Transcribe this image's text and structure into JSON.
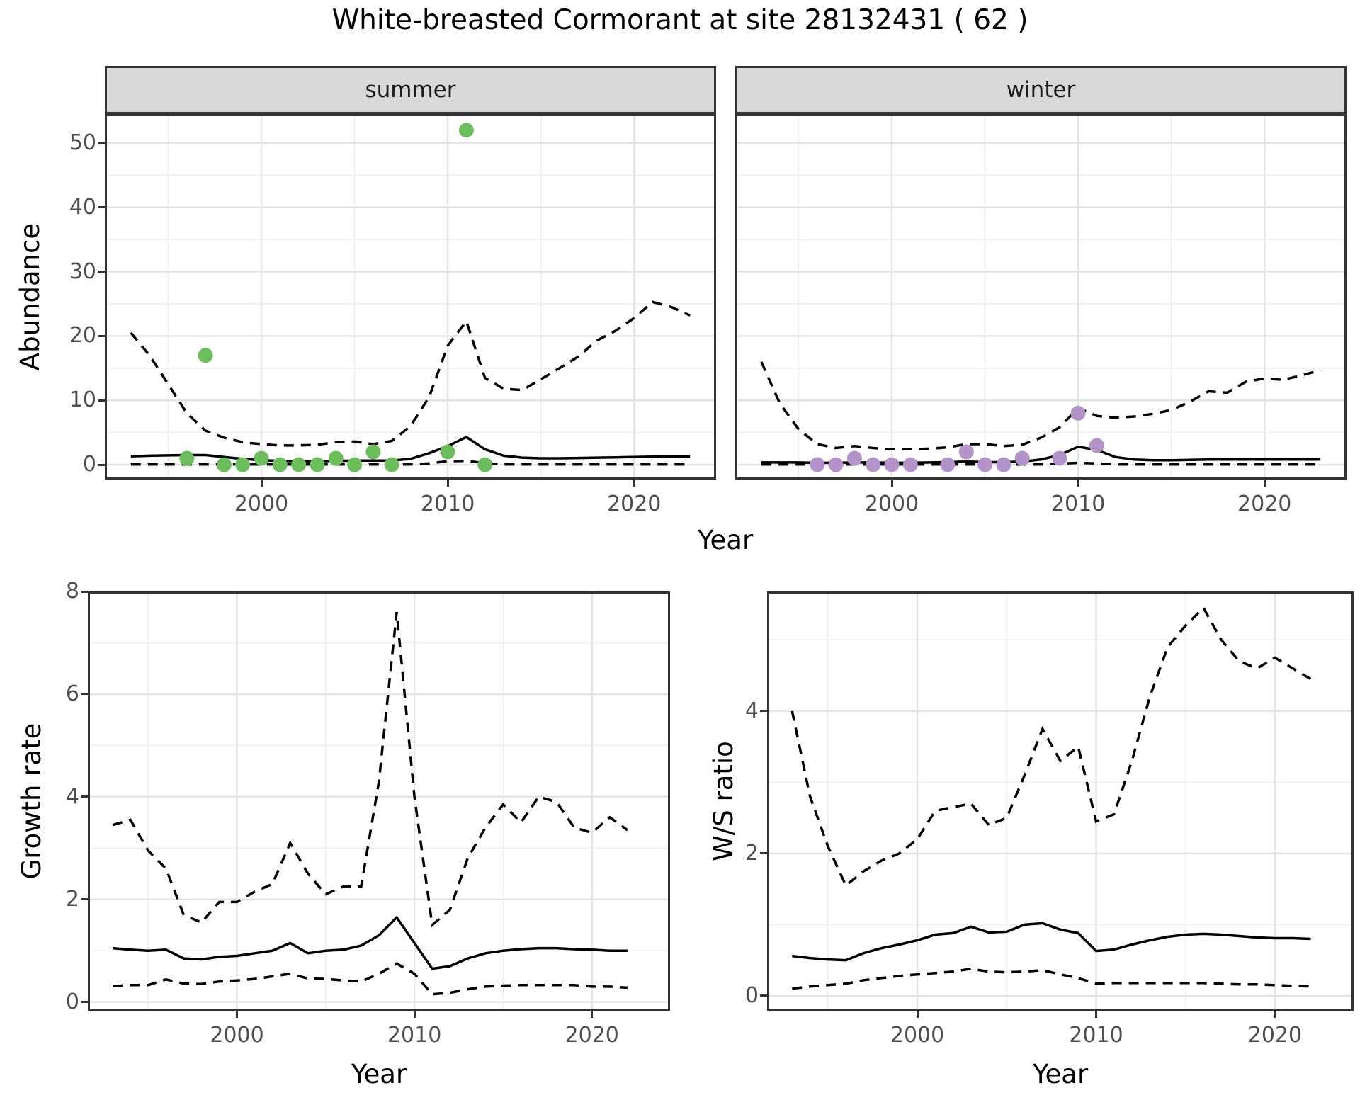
{
  "title": "White-breasted Cormorant at site 28132431 ( 62 )",
  "facets": {
    "summer": "summer",
    "winter": "winter"
  },
  "axis_titles": {
    "y_top": "Abundance",
    "x_top": "Year",
    "y_growth": "Growth rate",
    "x_growth": "Year",
    "y_ws": "W/S ratio",
    "x_ws": "Year"
  },
  "colors": {
    "summer_point": "#6CBE5C",
    "winter_point": "#B493CB",
    "line": "#000000",
    "grid_major": "#E3E3E3",
    "grid_minor": "#F0F0F0",
    "strip_fill": "#D9D9D9",
    "border": "#333333",
    "axis_text": "#4D4D4D"
  },
  "chart_data": [
    {
      "id": "abundance_summer",
      "type": "line+scatter",
      "facet": "summer",
      "xlabel": "Year",
      "ylabel": "Abundance",
      "xlim": [
        1991.6,
        2024.4
      ],
      "ylim": [
        -2.3,
        54.5
      ],
      "x_major_ticks": [
        2000,
        2010,
        2020
      ],
      "x_minor_ticks": [
        1995,
        2005,
        2015
      ],
      "y_major_ticks": [
        0,
        10,
        20,
        30,
        40,
        50
      ],
      "y_minor_ticks": [
        5,
        15,
        25,
        35,
        45
      ],
      "show_y_tick_labels": true,
      "points": {
        "name": "observed-count",
        "color": "summer_point",
        "years": [
          1996,
          1997,
          1998,
          1999,
          2000,
          2001,
          2002,
          2003,
          2004,
          2005,
          2006,
          2007,
          2010,
          2011,
          2012
        ],
        "values": [
          1,
          17,
          0,
          0,
          1,
          0,
          0,
          0,
          1,
          0,
          2,
          0,
          2,
          52,
          0
        ]
      },
      "series": [
        {
          "name": "model-fit",
          "style": "solid",
          "years": [
            1993,
            1994,
            1995,
            1996,
            1997,
            1998,
            1999,
            2000,
            2001,
            2002,
            2003,
            2004,
            2005,
            2006,
            2007,
            2008,
            2009,
            2010,
            2011,
            2012,
            2013,
            2014,
            2015,
            2016,
            2017,
            2018,
            2019,
            2020,
            2021,
            2022,
            2023
          ],
          "values": [
            1.3,
            1.4,
            1.45,
            1.5,
            1.5,
            1.2,
            0.9,
            0.7,
            0.6,
            0.55,
            0.55,
            0.6,
            0.65,
            0.65,
            0.65,
            0.9,
            1.8,
            2.9,
            4.3,
            2.4,
            1.4,
            1.1,
            1.0,
            1.0,
            1.05,
            1.1,
            1.15,
            1.2,
            1.25,
            1.3,
            1.3
          ]
        },
        {
          "name": "ci-upper",
          "style": "dashed",
          "years": [
            1993,
            1994,
            1995,
            1996,
            1997,
            1998,
            1999,
            2000,
            2001,
            2002,
            2003,
            2004,
            2005,
            2006,
            2007,
            2008,
            2009,
            2010,
            2011,
            2012,
            2013,
            2014,
            2015,
            2016,
            2017,
            2018,
            2019,
            2020,
            2021,
            2022,
            2023
          ],
          "values": [
            20.5,
            17,
            12.5,
            8,
            5.3,
            4.2,
            3.5,
            3.2,
            3.0,
            3.0,
            3.1,
            3.5,
            3.6,
            3.2,
            3.7,
            6,
            10.5,
            18.5,
            22.3,
            13.5,
            11.8,
            11.6,
            13.3,
            15,
            16.8,
            19.3,
            20.8,
            22.8,
            25.3,
            24.5,
            23.2
          ]
        },
        {
          "name": "ci-lower",
          "style": "dashed",
          "years": [
            1993,
            1994,
            1995,
            1996,
            1997,
            1998,
            1999,
            2000,
            2001,
            2002,
            2003,
            2004,
            2005,
            2006,
            2007,
            2008,
            2009,
            2010,
            2011,
            2012,
            2013,
            2014,
            2015,
            2016,
            2017,
            2018,
            2019,
            2020,
            2021,
            2022,
            2023
          ],
          "values": [
            0.05,
            0.05,
            0.05,
            0.05,
            0.05,
            0.05,
            0.05,
            0.05,
            0.05,
            0.05,
            0.05,
            0.05,
            0.05,
            0.05,
            0.05,
            0.05,
            0.2,
            0.55,
            0.6,
            0.25,
            0.05,
            0.05,
            0.05,
            0.05,
            0.05,
            0.05,
            0.05,
            0.05,
            0.05,
            0.05,
            0.05
          ]
        }
      ]
    },
    {
      "id": "abundance_winter",
      "type": "line+scatter",
      "facet": "winter",
      "xlabel": "Year",
      "ylabel": "Abundance",
      "xlim": [
        1991.6,
        2024.4
      ],
      "ylim": [
        -2.3,
        54.5
      ],
      "x_major_ticks": [
        2000,
        2010,
        2020
      ],
      "x_minor_ticks": [
        1995,
        2005,
        2015
      ],
      "y_major_ticks": [
        0,
        10,
        20,
        30,
        40,
        50
      ],
      "y_minor_ticks": [
        5,
        15,
        25,
        35,
        45
      ],
      "show_y_tick_labels": false,
      "points": {
        "name": "observed-count",
        "color": "winter_point",
        "years": [
          1996,
          1997,
          1998,
          1999,
          2000,
          2001,
          2003,
          2004,
          2005,
          2006,
          2007,
          2009,
          2010,
          2011
        ],
        "values": [
          0,
          0,
          1,
          0,
          0,
          0,
          0,
          2,
          0,
          0,
          1,
          1,
          8,
          3
        ]
      },
      "series": [
        {
          "name": "model-fit",
          "style": "solid",
          "years": [
            1993,
            1994,
            1995,
            1996,
            1997,
            1998,
            1999,
            2000,
            2001,
            2002,
            2003,
            2004,
            2005,
            2006,
            2007,
            2008,
            2009,
            2010,
            2011,
            2012,
            2013,
            2014,
            2015,
            2016,
            2017,
            2018,
            2019,
            2020,
            2021,
            2022,
            2023
          ],
          "values": [
            0.35,
            0.35,
            0.35,
            0.3,
            0.3,
            0.35,
            0.35,
            0.3,
            0.3,
            0.35,
            0.4,
            0.5,
            0.4,
            0.4,
            0.5,
            0.8,
            1.5,
            2.8,
            2.3,
            1.2,
            0.8,
            0.7,
            0.7,
            0.75,
            0.8,
            0.8,
            0.8,
            0.8,
            0.8,
            0.8,
            0.8
          ]
        },
        {
          "name": "ci-upper",
          "style": "dashed",
          "years": [
            1993,
            1994,
            1995,
            1996,
            1997,
            1998,
            1999,
            2000,
            2001,
            2002,
            2003,
            2004,
            2005,
            2006,
            2007,
            2008,
            2009,
            2010,
            2011,
            2012,
            2013,
            2014,
            2015,
            2016,
            2017,
            2018,
            2019,
            2020,
            2021,
            2022,
            2023
          ],
          "values": [
            16,
            9.5,
            5.5,
            3.2,
            2.6,
            2.9,
            2.6,
            2.4,
            2.4,
            2.5,
            2.7,
            3.2,
            3.2,
            2.9,
            3.1,
            4.2,
            5.8,
            8.8,
            7.6,
            7.3,
            7.5,
            7.9,
            8.5,
            9.8,
            11.4,
            11.2,
            12.9,
            13.4,
            13.2,
            13.9,
            14.7
          ]
        },
        {
          "name": "ci-lower",
          "style": "dashed",
          "years": [
            1993,
            1994,
            1995,
            1996,
            1997,
            1998,
            1999,
            2000,
            2001,
            2002,
            2003,
            2004,
            2005,
            2006,
            2007,
            2008,
            2009,
            2010,
            2011,
            2012,
            2013,
            2014,
            2015,
            2016,
            2017,
            2018,
            2019,
            2020,
            2021,
            2022,
            2023
          ],
          "values": [
            0.05,
            0.05,
            0.05,
            0.05,
            0.05,
            0.05,
            0.05,
            0.05,
            0.05,
            0.05,
            0.05,
            0.05,
            0.05,
            0.05,
            0.05,
            0.05,
            0.15,
            0.3,
            0.2,
            0.05,
            0.05,
            0.05,
            0.05,
            0.05,
            0.05,
            0.05,
            0.05,
            0.05,
            0.05,
            0.05,
            0.05
          ]
        }
      ]
    },
    {
      "id": "growth",
      "type": "line",
      "facet": "",
      "xlabel": "Year",
      "ylabel": "Growth rate",
      "xlim": [
        1991.6,
        2024.4
      ],
      "ylim": [
        -0.17,
        8.0
      ],
      "x_major_ticks": [
        2000,
        2010,
        2020
      ],
      "x_minor_ticks": [
        1995,
        2005,
        2015
      ],
      "y_major_ticks": [
        0,
        2,
        4,
        6,
        8
      ],
      "y_minor_ticks": [
        1,
        3,
        5,
        7
      ],
      "show_y_tick_labels": true,
      "points": null,
      "series": [
        {
          "name": "model-fit",
          "style": "solid",
          "years": [
            1993,
            1994,
            1995,
            1996,
            1997,
            1998,
            1999,
            2000,
            2001,
            2002,
            2003,
            2004,
            2005,
            2006,
            2007,
            2008,
            2009,
            2010,
            2011,
            2012,
            2013,
            2014,
            2015,
            2016,
            2017,
            2018,
            2019,
            2020,
            2021,
            2022
          ],
          "values": [
            1.05,
            1.02,
            1.0,
            1.02,
            0.85,
            0.83,
            0.88,
            0.9,
            0.95,
            1.0,
            1.15,
            0.95,
            1.0,
            1.02,
            1.1,
            1.3,
            1.65,
            1.15,
            0.65,
            0.7,
            0.85,
            0.95,
            1.0,
            1.03,
            1.05,
            1.05,
            1.03,
            1.02,
            1.0,
            1.0
          ]
        },
        {
          "name": "ci-upper",
          "style": "dashed",
          "years": [
            1993,
            1994,
            1995,
            1996,
            1997,
            1998,
            1999,
            2000,
            2001,
            2002,
            2003,
            2004,
            2005,
            2006,
            2007,
            2008,
            2009,
            2010,
            2011,
            2012,
            2013,
            2014,
            2015,
            2016,
            2017,
            2018,
            2019,
            2020,
            2021,
            2022
          ],
          "values": [
            3.45,
            3.55,
            2.95,
            2.6,
            1.7,
            1.55,
            1.95,
            1.95,
            2.15,
            2.3,
            3.1,
            2.5,
            2.1,
            2.25,
            2.25,
            4.3,
            7.6,
            4.0,
            1.5,
            1.8,
            2.8,
            3.4,
            3.85,
            3.5,
            4.0,
            3.9,
            3.4,
            3.3,
            3.6,
            3.35
          ]
        },
        {
          "name": "ci-lower",
          "style": "dashed",
          "years": [
            1993,
            1994,
            1995,
            1996,
            1997,
            1998,
            1999,
            2000,
            2001,
            2002,
            2003,
            2004,
            2005,
            2006,
            2007,
            2008,
            2009,
            2010,
            2011,
            2012,
            2013,
            2014,
            2015,
            2016,
            2017,
            2018,
            2019,
            2020,
            2021,
            2022
          ],
          "values": [
            0.31,
            0.33,
            0.33,
            0.44,
            0.36,
            0.35,
            0.4,
            0.42,
            0.45,
            0.5,
            0.55,
            0.46,
            0.45,
            0.42,
            0.4,
            0.55,
            0.75,
            0.55,
            0.15,
            0.18,
            0.25,
            0.3,
            0.32,
            0.33,
            0.33,
            0.33,
            0.33,
            0.3,
            0.3,
            0.28
          ]
        }
      ]
    },
    {
      "id": "ws",
      "type": "line",
      "facet": "",
      "xlabel": "Year",
      "ylabel": "W/S ratio",
      "xlim": [
        1991.6,
        2024.4
      ],
      "ylim": [
        -0.21,
        5.68
      ],
      "x_major_ticks": [
        2000,
        2010,
        2020
      ],
      "x_minor_ticks": [
        1995,
        2005,
        2015
      ],
      "y_major_ticks": [
        0,
        2,
        4
      ],
      "y_minor_ticks": [
        1,
        3,
        5
      ],
      "show_y_tick_labels": true,
      "points": null,
      "series": [
        {
          "name": "model-fit",
          "style": "solid",
          "years": [
            1993,
            1994,
            1995,
            1996,
            1997,
            1998,
            1999,
            2000,
            2001,
            2002,
            2003,
            2004,
            2005,
            2006,
            2007,
            2008,
            2009,
            2010,
            2011,
            2012,
            2013,
            2014,
            2015,
            2016,
            2017,
            2018,
            2019,
            2020,
            2021,
            2022
          ],
          "values": [
            0.56,
            0.53,
            0.51,
            0.5,
            0.6,
            0.67,
            0.72,
            0.78,
            0.86,
            0.88,
            0.97,
            0.89,
            0.9,
            1.0,
            1.02,
            0.93,
            0.88,
            0.63,
            0.65,
            0.72,
            0.78,
            0.83,
            0.86,
            0.87,
            0.86,
            0.84,
            0.82,
            0.81,
            0.81,
            0.8
          ]
        },
        {
          "name": "ci-upper",
          "style": "dashed",
          "years": [
            1993,
            1994,
            1995,
            1996,
            1997,
            1998,
            1999,
            2000,
            2001,
            2002,
            2003,
            2004,
            2005,
            2006,
            2007,
            2008,
            2009,
            2010,
            2011,
            2012,
            2013,
            2014,
            2015,
            2016,
            2017,
            2018,
            2019,
            2020,
            2021,
            2022
          ],
          "values": [
            4.0,
            2.8,
            2.1,
            1.55,
            1.75,
            1.9,
            2.0,
            2.2,
            2.6,
            2.65,
            2.7,
            2.4,
            2.5,
            3.1,
            3.75,
            3.3,
            3.5,
            2.45,
            2.55,
            3.3,
            4.2,
            4.9,
            5.2,
            5.45,
            5.0,
            4.7,
            4.6,
            4.75,
            4.6,
            4.45
          ]
        },
        {
          "name": "ci-lower",
          "style": "dashed",
          "years": [
            1993,
            1994,
            1995,
            1996,
            1997,
            1998,
            1999,
            2000,
            2001,
            2002,
            2003,
            2004,
            2005,
            2006,
            2007,
            2008,
            2009,
            2010,
            2011,
            2012,
            2013,
            2014,
            2015,
            2016,
            2017,
            2018,
            2019,
            2020,
            2021,
            2022
          ],
          "values": [
            0.1,
            0.13,
            0.15,
            0.17,
            0.22,
            0.25,
            0.28,
            0.3,
            0.32,
            0.34,
            0.38,
            0.34,
            0.33,
            0.34,
            0.36,
            0.3,
            0.25,
            0.17,
            0.18,
            0.18,
            0.18,
            0.18,
            0.18,
            0.18,
            0.17,
            0.16,
            0.16,
            0.15,
            0.14,
            0.13
          ]
        }
      ]
    }
  ]
}
